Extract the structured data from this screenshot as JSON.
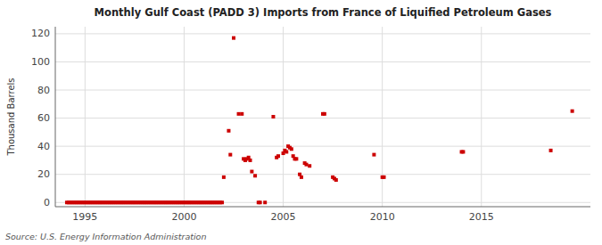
{
  "chart_data": {
    "type": "scatter",
    "title": "Monthly Gulf Coast (PADD 3) Imports from France of Liquified Petroleum Gases",
    "ylabel": "Thousand Barrels",
    "source": "Source: U.S. Energy Information Administration",
    "color": "#cc0000",
    "marker": "square",
    "grid": true,
    "xlim": [
      1993.5,
      2020.5
    ],
    "ylim": [
      -3,
      125
    ],
    "xticks": [
      1995,
      2000,
      2005,
      2010,
      2015
    ],
    "yticks": [
      0,
      20,
      40,
      60,
      80,
      100,
      120
    ],
    "x": [
      1994.083,
      1994.167,
      1994.25,
      1994.333,
      1994.417,
      1994.5,
      1994.583,
      1994.667,
      1994.75,
      1994.833,
      1994.917,
      1995.0,
      1995.083,
      1995.167,
      1995.25,
      1995.333,
      1995.417,
      1995.5,
      1995.583,
      1995.667,
      1995.75,
      1995.833,
      1995.917,
      1996.0,
      1996.083,
      1996.167,
      1996.25,
      1996.333,
      1996.417,
      1996.5,
      1996.583,
      1996.667,
      1996.75,
      1996.833,
      1996.917,
      1997.0,
      1997.083,
      1997.167,
      1997.25,
      1997.333,
      1997.417,
      1997.5,
      1997.583,
      1997.667,
      1997.75,
      1997.833,
      1997.917,
      1998.0,
      1998.083,
      1998.167,
      1998.25,
      1998.333,
      1998.417,
      1998.5,
      1998.583,
      1998.667,
      1998.75,
      1998.833,
      1998.917,
      1999.0,
      1999.083,
      1999.167,
      1999.25,
      1999.333,
      1999.417,
      1999.5,
      1999.583,
      1999.667,
      1999.75,
      1999.833,
      1999.917,
      2000.0,
      2000.083,
      2000.167,
      2000.25,
      2000.333,
      2000.417,
      2000.5,
      2000.583,
      2000.667,
      2000.75,
      2000.833,
      2000.917,
      2001.0,
      2001.083,
      2001.167,
      2001.25,
      2001.333,
      2001.417,
      2001.5,
      2001.583,
      2001.667,
      2001.75,
      2001.833,
      2001.917,
      2002.0,
      2002.25,
      2002.333,
      2002.5,
      2002.75,
      2002.917,
      2003.0,
      2003.083,
      2003.167,
      2003.25,
      2003.333,
      2003.417,
      2003.583,
      2003.75,
      2003.833,
      2004.083,
      2004.5,
      2004.667,
      2004.75,
      2005.0,
      2005.083,
      2005.167,
      2005.25,
      2005.333,
      2005.417,
      2005.5,
      2005.583,
      2005.667,
      2005.833,
      2005.917,
      2006.083,
      2006.167,
      2006.333,
      2007.0,
      2007.083,
      2007.5,
      2007.583,
      2007.667,
      2009.583,
      2010.0,
      2010.083,
      2014.0,
      2014.083,
      2018.5,
      2019.583
    ],
    "values": [
      0,
      0,
      0,
      0,
      0,
      0,
      0,
      0,
      0,
      0,
      0,
      0,
      0,
      0,
      0,
      0,
      0,
      0,
      0,
      0,
      0,
      0,
      0,
      0,
      0,
      0,
      0,
      0,
      0,
      0,
      0,
      0,
      0,
      0,
      0,
      0,
      0,
      0,
      0,
      0,
      0,
      0,
      0,
      0,
      0,
      0,
      0,
      0,
      0,
      0,
      0,
      0,
      0,
      0,
      0,
      0,
      0,
      0,
      0,
      0,
      0,
      0,
      0,
      0,
      0,
      0,
      0,
      0,
      0,
      0,
      0,
      0,
      0,
      0,
      0,
      0,
      0,
      0,
      0,
      0,
      0,
      0,
      0,
      0,
      0,
      0,
      0,
      0,
      0,
      0,
      0,
      0,
      0,
      0,
      0,
      18,
      51,
      34,
      117,
      63,
      63,
      31,
      30,
      31,
      32,
      30,
      22,
      19,
      0,
      0,
      0,
      61,
      32,
      33,
      35,
      37,
      36,
      40,
      39,
      38,
      33,
      31,
      31,
      20,
      18,
      28,
      27,
      26,
      63,
      63,
      18,
      17,
      16,
      34,
      18,
      18,
      36,
      36,
      37,
      65
    ]
  }
}
